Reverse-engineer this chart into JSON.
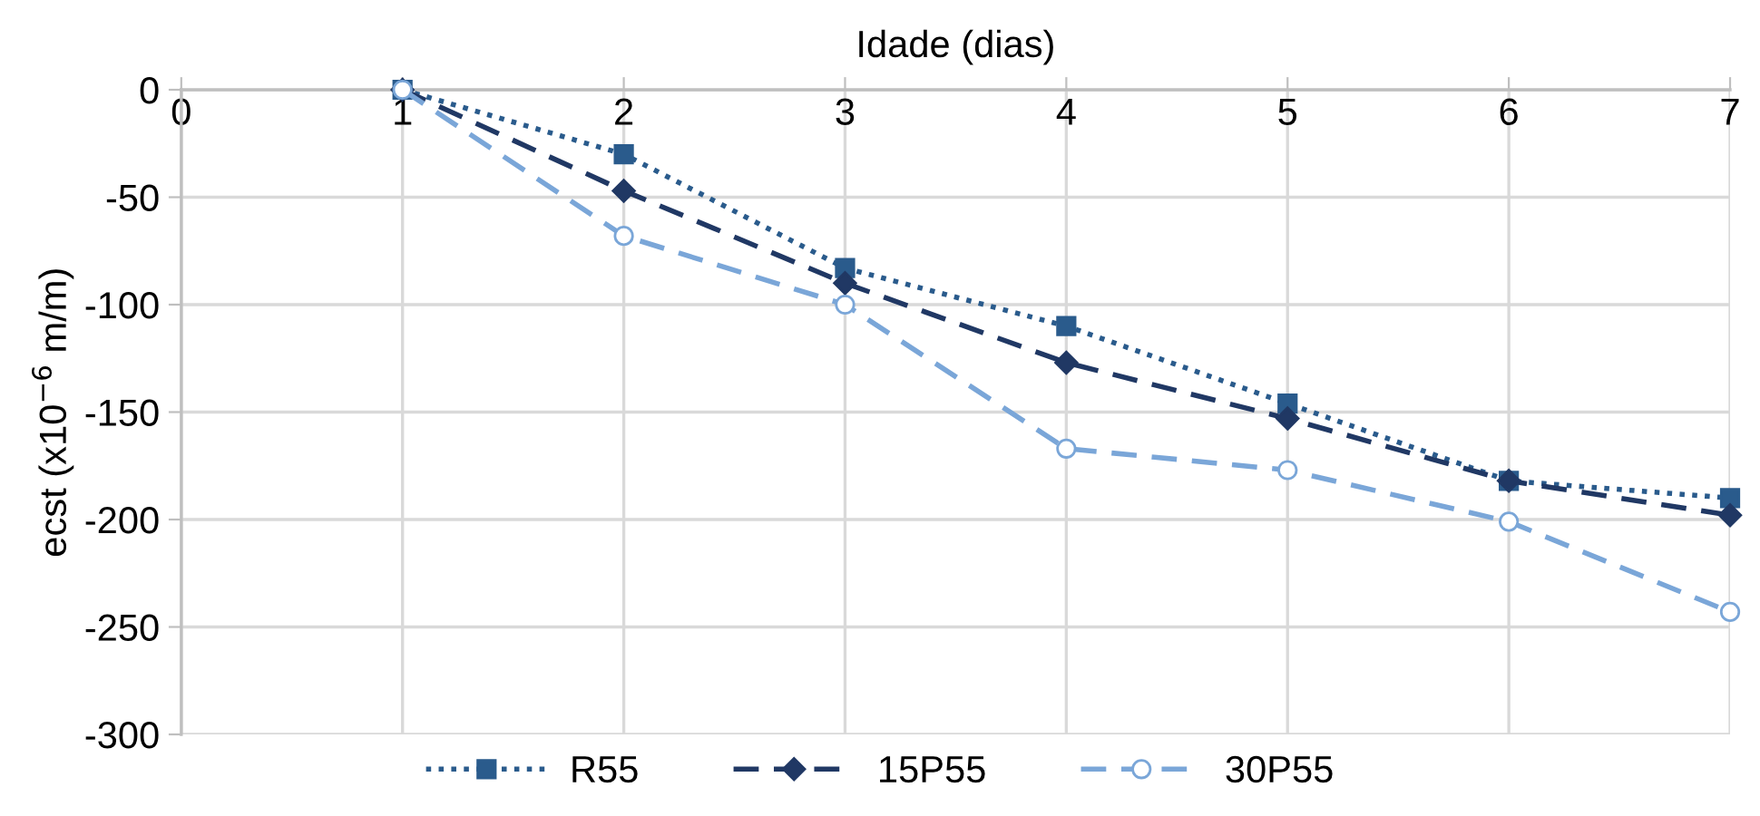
{
  "chart_data": {
    "type": "line",
    "xlabel": "Idade (dias)",
    "ylabel": "ecst (x10$^{−6}$ m/m)",
    "x": [
      1,
      2,
      3,
      4,
      5,
      6,
      7
    ],
    "xlim": [
      0,
      7
    ],
    "xticks": [
      0,
      1,
      2,
      3,
      4,
      5,
      6,
      7
    ],
    "ylim": [
      -300,
      0
    ],
    "yticks": [
      -300,
      -250,
      -200,
      -150,
      -100,
      -50,
      0
    ],
    "grid": true,
    "legend": "bottom",
    "series": [
      {
        "name": "R55",
        "color": "#2a5b8c",
        "marker": "square",
        "line_style": "dotted",
        "values": [
          0,
          -30,
          -83,
          -110,
          -146,
          -182,
          -190
        ]
      },
      {
        "name": "15P55",
        "color": "#203864",
        "marker": "diamond",
        "line_style": "dashed",
        "values": [
          0,
          -47,
          -90,
          -127,
          -153,
          -182,
          -198
        ]
      },
      {
        "name": "30P55",
        "color": "#7aa6d8",
        "marker": "circle",
        "line_style": "dashed",
        "values": [
          0,
          -68,
          -100,
          -167,
          -177,
          -201,
          -243
        ]
      }
    ]
  }
}
